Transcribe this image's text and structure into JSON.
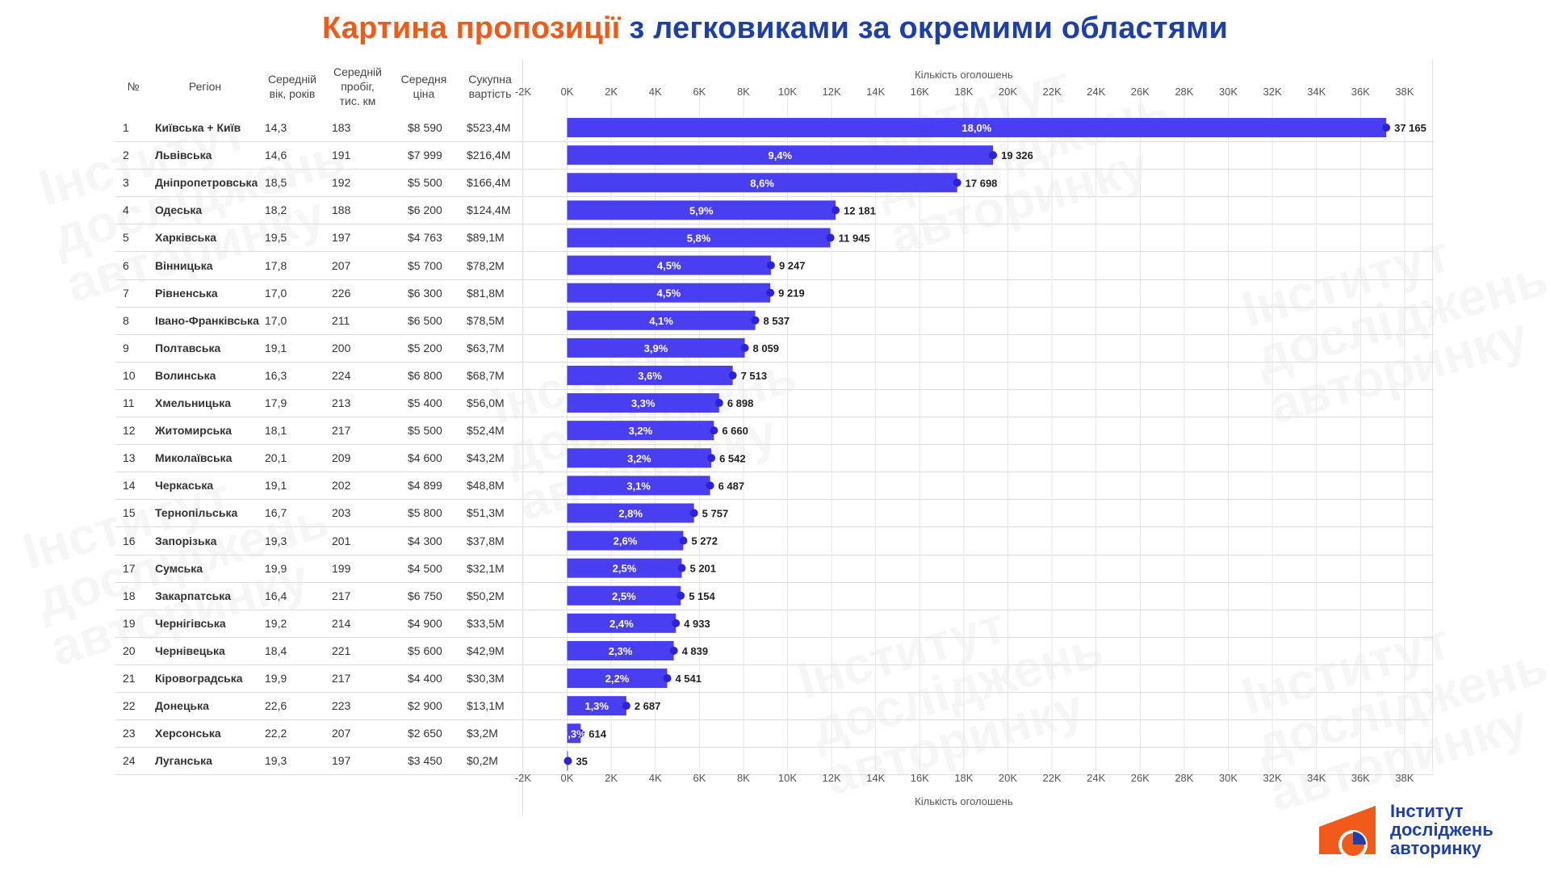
{
  "title": {
    "part1": "Картина пропозиції",
    "part2": "з легковиками за окремими областями"
  },
  "table": {
    "headers": {
      "num": "№",
      "region": "Регіон",
      "age": "Середній\nвік, років",
      "mileage": "Середній\nпробіг,\nтис. км",
      "price": "Середня\nціна",
      "total": "Сукупна\nвартість"
    },
    "rows": [
      {
        "num": "1",
        "region": "Київська + Київ",
        "age": "14,3",
        "mileage": "183",
        "price": "$8 590",
        "total": "$523,4M"
      },
      {
        "num": "2",
        "region": "Львівська",
        "age": "14,6",
        "mileage": "191",
        "price": "$7 999",
        "total": "$216,4M"
      },
      {
        "num": "3",
        "region": "Дніпропетровська",
        "age": "18,5",
        "mileage": "192",
        "price": "$5 500",
        "total": "$166,4M"
      },
      {
        "num": "4",
        "region": "Одеська",
        "age": "18,2",
        "mileage": "188",
        "price": "$6 200",
        "total": "$124,4M"
      },
      {
        "num": "5",
        "region": "Харківська",
        "age": "19,5",
        "mileage": "197",
        "price": "$4 763",
        "total": "$89,1M"
      },
      {
        "num": "6",
        "region": "Вінницька",
        "age": "17,8",
        "mileage": "207",
        "price": "$5 700",
        "total": "$78,2M"
      },
      {
        "num": "7",
        "region": "Рівненська",
        "age": "17,0",
        "mileage": "226",
        "price": "$6 300",
        "total": "$81,8M"
      },
      {
        "num": "8",
        "region": "Івано-Франківська",
        "age": "17,0",
        "mileage": "211",
        "price": "$6 500",
        "total": "$78,5M"
      },
      {
        "num": "9",
        "region": "Полтавська",
        "age": "19,1",
        "mileage": "200",
        "price": "$5 200",
        "total": "$63,7M"
      },
      {
        "num": "10",
        "region": "Волинська",
        "age": "16,3",
        "mileage": "224",
        "price": "$6 800",
        "total": "$68,7M"
      },
      {
        "num": "11",
        "region": "Хмельницька",
        "age": "17,9",
        "mileage": "213",
        "price": "$5 400",
        "total": "$56,0M"
      },
      {
        "num": "12",
        "region": "Житомирська",
        "age": "18,1",
        "mileage": "217",
        "price": "$5 500",
        "total": "$52,4M"
      },
      {
        "num": "13",
        "region": "Миколаївська",
        "age": "20,1",
        "mileage": "209",
        "price": "$4 600",
        "total": "$43,2M"
      },
      {
        "num": "14",
        "region": "Черкаська",
        "age": "19,1",
        "mileage": "202",
        "price": "$4 899",
        "total": "$48,8M"
      },
      {
        "num": "15",
        "region": "Тернопільська",
        "age": "16,7",
        "mileage": "203",
        "price": "$5 800",
        "total": "$51,3M"
      },
      {
        "num": "16",
        "region": "Запорізька",
        "age": "19,3",
        "mileage": "201",
        "price": "$4 300",
        "total": "$37,8M"
      },
      {
        "num": "17",
        "region": "Сумська",
        "age": "19,9",
        "mileage": "199",
        "price": "$4 500",
        "total": "$32,1M"
      },
      {
        "num": "18",
        "region": "Закарпатська",
        "age": "16,4",
        "mileage": "217",
        "price": "$6 750",
        "total": "$50,2M"
      },
      {
        "num": "19",
        "region": "Чернігівська",
        "age": "19,2",
        "mileage": "214",
        "price": "$4 900",
        "total": "$33,5M"
      },
      {
        "num": "20",
        "region": "Чернівецька",
        "age": "18,4",
        "mileage": "221",
        "price": "$5 600",
        "total": "$42,9M"
      },
      {
        "num": "21",
        "region": "Кіровоградська",
        "age": "19,9",
        "mileage": "217",
        "price": "$4 400",
        "total": "$30,3M"
      },
      {
        "num": "22",
        "region": "Донецька",
        "age": "22,6",
        "mileage": "223",
        "price": "$2 900",
        "total": "$13,1M"
      },
      {
        "num": "23",
        "region": "Херсонська",
        "age": "22,2",
        "mileage": "207",
        "price": "$2 650",
        "total": "$3,2M"
      },
      {
        "num": "24",
        "region": "Луганська",
        "age": "19,3",
        "mileage": "197",
        "price": "$3 450",
        "total": "$0,2M"
      }
    ]
  },
  "chart_data": {
    "type": "bar",
    "orientation": "horizontal",
    "xlabel": "Кількість оголошень",
    "xlim": [
      -2000,
      38000
    ],
    "x_ticks": [
      "-2K",
      "0K",
      "2K",
      "4K",
      "6K",
      "8K",
      "10K",
      "12K",
      "14K",
      "16K",
      "18K",
      "20K",
      "22K",
      "24K",
      "26K",
      "28K",
      "30K",
      "32K",
      "34K",
      "36K",
      "38K"
    ],
    "grid": true,
    "categories": [
      "Київська + Київ",
      "Львівська",
      "Дніпропетровська",
      "Одеська",
      "Харківська",
      "Вінницька",
      "Рівненська",
      "Івано-Франківська",
      "Полтавська",
      "Волинська",
      "Хмельницька",
      "Житомирська",
      "Миколаївська",
      "Черкаська",
      "Тернопільська",
      "Запорізька",
      "Сумська",
      "Закарпатська",
      "Чернігівська",
      "Чернівецька",
      "Кіровоградська",
      "Донецька",
      "Херсонська",
      "Луганська"
    ],
    "values": [
      37165,
      19326,
      17698,
      12181,
      11945,
      9247,
      9219,
      8537,
      8059,
      7513,
      6898,
      6660,
      6542,
      6487,
      5757,
      5272,
      5201,
      5154,
      4933,
      4839,
      4541,
      2687,
      614,
      35
    ],
    "value_labels": [
      "37 165",
      "19 326",
      "17 698",
      "12 181",
      "11 945",
      "9 247",
      "9 219",
      "8 537",
      "8 059",
      "7 513",
      "6 898",
      "6 660",
      "6 542",
      "6 487",
      "5 757",
      "5 272",
      "5 201",
      "5 154",
      "4 933",
      "4 839",
      "4 541",
      "2 687",
      "614",
      "35"
    ],
    "share_labels": [
      "18,0%",
      "9,4%",
      "8,6%",
      "5,9%",
      "5,8%",
      "4,5%",
      "4,5%",
      "4,1%",
      "3,9%",
      "3,6%",
      "3,3%",
      "3,2%",
      "3,2%",
      "3,1%",
      "2,8%",
      "2,6%",
      "2,5%",
      "2,5%",
      "2,4%",
      "2,3%",
      "2,2%",
      "1,3%",
      "0,3%",
      ""
    ],
    "colors": {
      "bar": "#4a3ff0",
      "dot": "#2c22d8",
      "grid": "#e6e6e6"
    }
  },
  "watermark": "Інститут\nдосліджень\nавторинку",
  "logo": {
    "text": "Інститут\nдосліджень\nавторинку",
    "colors": {
      "orange": "#f05a1a",
      "blue": "#1f3fa8"
    }
  }
}
